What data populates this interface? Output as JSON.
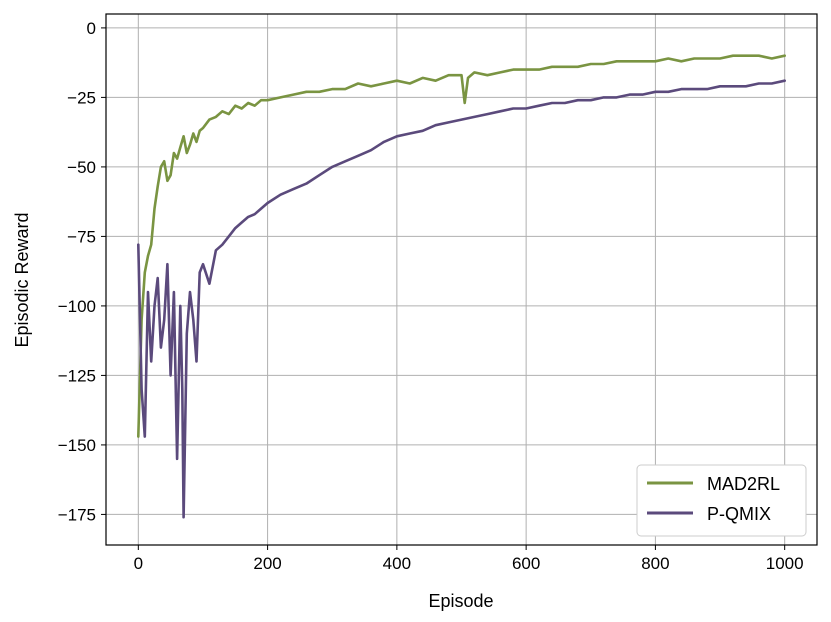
{
  "chart_data": {
    "type": "line",
    "title": "",
    "xlabel": "Episode",
    "ylabel": "Episodic Reward",
    "xlim": [
      -50,
      1050
    ],
    "ylim": [
      -186,
      5
    ],
    "xticks": [
      0,
      200,
      400,
      600,
      800,
      1000
    ],
    "xtick_labels": [
      "0",
      "200",
      "400",
      "600",
      "800",
      "1000"
    ],
    "yticks": [
      0,
      -25,
      -50,
      -75,
      -100,
      -125,
      -150,
      -175
    ],
    "ytick_labels": [
      "0",
      "−25",
      "−50",
      "−75",
      "−100",
      "−125",
      "−150",
      "−175"
    ],
    "grid": true,
    "legend_position": "lower-right",
    "series": [
      {
        "name": "MAD2RL",
        "color": "#7a9442",
        "x": [
          0,
          5,
          10,
          15,
          20,
          25,
          30,
          35,
          40,
          45,
          50,
          55,
          60,
          65,
          70,
          75,
          80,
          85,
          90,
          95,
          100,
          110,
          120,
          130,
          140,
          150,
          160,
          170,
          180,
          190,
          200,
          220,
          240,
          260,
          280,
          300,
          320,
          340,
          360,
          380,
          400,
          420,
          440,
          460,
          480,
          500,
          505,
          510,
          520,
          540,
          560,
          580,
          600,
          620,
          640,
          660,
          680,
          700,
          720,
          740,
          760,
          780,
          800,
          820,
          840,
          860,
          880,
          900,
          920,
          940,
          960,
          980,
          1000
        ],
        "y": [
          -147,
          -105,
          -88,
          -82,
          -78,
          -65,
          -57,
          -50,
          -48,
          -55,
          -53,
          -45,
          -47,
          -43,
          -39,
          -45,
          -42,
          -38,
          -41,
          -37,
          -36,
          -33,
          -32,
          -30,
          -31,
          -28,
          -29,
          -27,
          -28,
          -26,
          -26,
          -25,
          -24,
          -23,
          -23,
          -22,
          -22,
          -20,
          -21,
          -20,
          -19,
          -20,
          -18,
          -19,
          -17,
          -17,
          -27,
          -18,
          -16,
          -17,
          -16,
          -15,
          -15,
          -15,
          -14,
          -14,
          -14,
          -13,
          -13,
          -12,
          -12,
          -12,
          -12,
          -11,
          -12,
          -11,
          -11,
          -11,
          -10,
          -10,
          -10,
          -11,
          -10
        ]
      },
      {
        "name": "P-QMIX",
        "color": "#5b4a7c",
        "x": [
          0,
          5,
          10,
          15,
          20,
          25,
          30,
          35,
          40,
          45,
          50,
          55,
          60,
          65,
          68,
          70,
          75,
          80,
          85,
          90,
          95,
          100,
          110,
          120,
          130,
          140,
          150,
          160,
          170,
          180,
          190,
          200,
          220,
          240,
          260,
          280,
          300,
          320,
          340,
          360,
          380,
          400,
          420,
          440,
          460,
          480,
          500,
          520,
          540,
          560,
          580,
          600,
          620,
          640,
          660,
          680,
          700,
          720,
          740,
          760,
          780,
          800,
          820,
          840,
          860,
          880,
          900,
          920,
          940,
          960,
          980,
          1000
        ],
        "y": [
          -78,
          -130,
          -147,
          -95,
          -120,
          -100,
          -90,
          -115,
          -105,
          -85,
          -125,
          -95,
          -155,
          -100,
          -130,
          -176,
          -110,
          -95,
          -105,
          -120,
          -88,
          -85,
          -92,
          -80,
          -78,
          -75,
          -72,
          -70,
          -68,
          -67,
          -65,
          -63,
          -60,
          -58,
          -56,
          -53,
          -50,
          -48,
          -46,
          -44,
          -41,
          -39,
          -38,
          -37,
          -35,
          -34,
          -33,
          -32,
          -31,
          -30,
          -29,
          -29,
          -28,
          -27,
          -27,
          -26,
          -26,
          -25,
          -25,
          -24,
          -24,
          -23,
          -23,
          -22,
          -22,
          -22,
          -21,
          -21,
          -21,
          -20,
          -20,
          -19
        ]
      }
    ]
  }
}
